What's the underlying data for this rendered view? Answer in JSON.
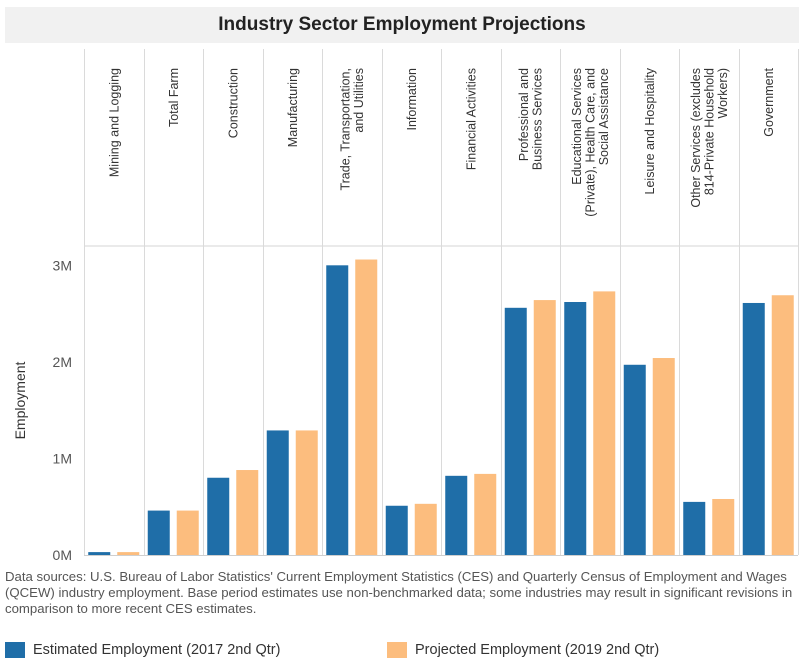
{
  "chart_data": {
    "type": "bar",
    "title": "Industry Sector Employment Projections",
    "ylabel": "Employment",
    "ylim": [
      0,
      3200000
    ],
    "yticks": [
      {
        "value": 0,
        "label": "0M"
      },
      {
        "value": 1000000,
        "label": "1M"
      },
      {
        "value": 2000000,
        "label": "2M"
      },
      {
        "value": 3000000,
        "label": "3M"
      }
    ],
    "categories": [
      [
        "Mining and Logging"
      ],
      [
        "Total Farm"
      ],
      [
        "Construction"
      ],
      [
        "Manufacturing"
      ],
      [
        "Trade, Transportation,",
        "and Utilities"
      ],
      [
        "Information"
      ],
      [
        "Financial Activities"
      ],
      [
        "Professional and",
        "Business Services"
      ],
      [
        "Educational Services",
        "(Private), Health Care, and",
        "Social Assistance"
      ],
      [
        "Leisure and Hospitality"
      ],
      [
        "Other Services (excludes",
        "814-Private Household",
        "Workers)"
      ],
      [
        "Government"
      ]
    ],
    "series": [
      {
        "name": "Estimated Employment (2017 2nd Qtr)",
        "color": "#1f6ea8",
        "values": [
          30000,
          460000,
          800000,
          1290000,
          3000000,
          510000,
          820000,
          2560000,
          2620000,
          1970000,
          550000,
          2610000
        ]
      },
      {
        "name": "Projected Employment (2019 2nd Qtr)",
        "color": "#fcbd7e",
        "values": [
          30000,
          460000,
          880000,
          1290000,
          3060000,
          530000,
          840000,
          2640000,
          2730000,
          2040000,
          580000,
          2690000
        ]
      }
    ],
    "grid": false,
    "legend_position": "bottom"
  },
  "footnote": "Data sources: U.S. Bureau of Labor Statistics' Current Employment Statistics (CES) and Quarterly Census of Employment and Wages (QCEW) industry employment.  Base period estimates use non-benchmarked data; some industries may result in significant revisions in comparison to more recent CES estimates."
}
